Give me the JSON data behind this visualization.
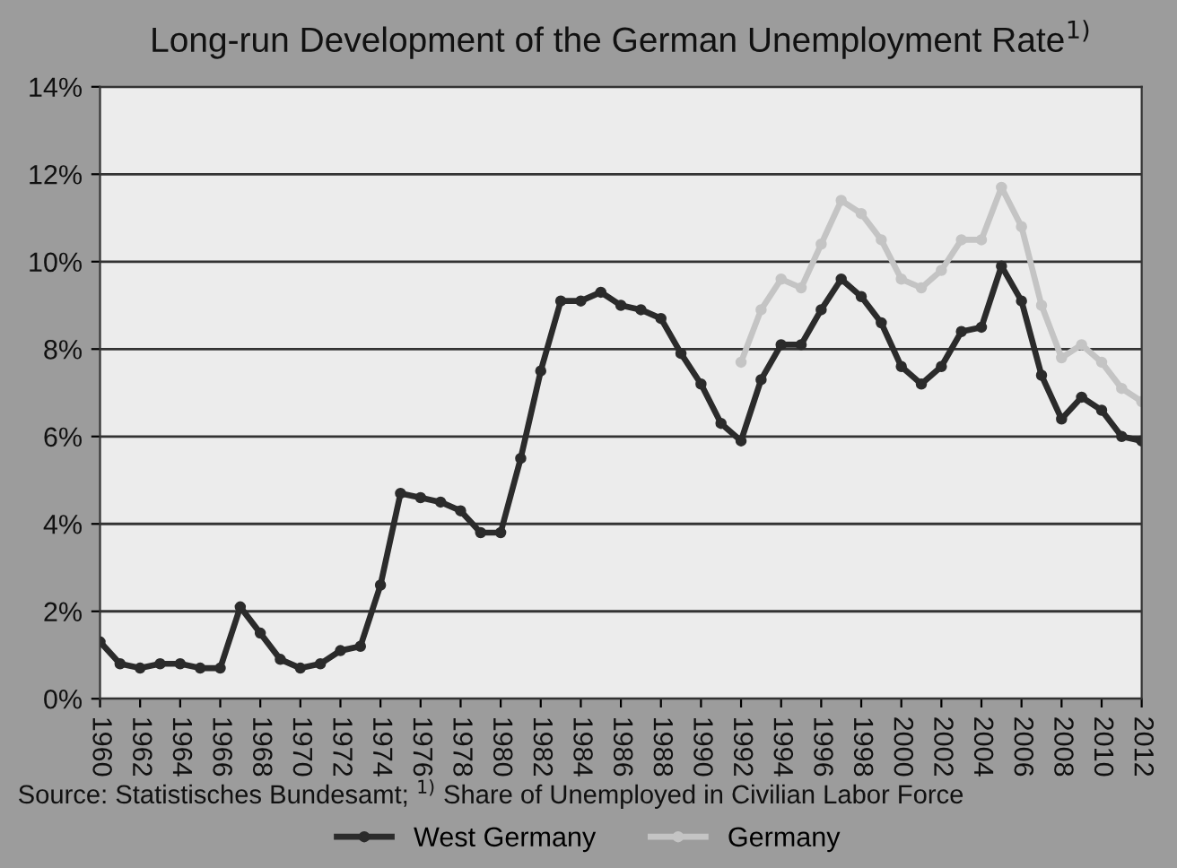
{
  "chart_data": {
    "type": "line",
    "title": "Long-run Development of the German Unemployment Rate$^{1)}$",
    "x": [
      1960,
      1961,
      1962,
      1963,
      1964,
      1965,
      1966,
      1967,
      1968,
      1969,
      1970,
      1971,
      1972,
      1973,
      1974,
      1975,
      1976,
      1977,
      1978,
      1979,
      1980,
      1981,
      1982,
      1983,
      1984,
      1985,
      1986,
      1987,
      1988,
      1989,
      1990,
      1991,
      1992,
      1993,
      1994,
      1995,
      1996,
      1997,
      1998,
      1999,
      2000,
      2001,
      2002,
      2003,
      2004,
      2005,
      2006,
      2007,
      2008,
      2009,
      2010,
      2011,
      2012
    ],
    "series": [
      {
        "name": "West Germany",
        "color": "#2b2b2b",
        "values": [
          1.3,
          0.8,
          0.7,
          0.8,
          0.8,
          0.7,
          0.7,
          2.1,
          1.5,
          0.9,
          0.7,
          0.8,
          1.1,
          1.2,
          2.6,
          4.7,
          4.6,
          4.5,
          4.3,
          3.8,
          3.8,
          5.5,
          7.5,
          9.1,
          9.1,
          9.3,
          9.0,
          8.9,
          8.7,
          7.9,
          7.2,
          6.3,
          5.9,
          7.3,
          8.1,
          8.1,
          8.9,
          9.6,
          9.2,
          8.6,
          7.6,
          7.2,
          7.6,
          8.4,
          8.5,
          9.9,
          9.1,
          7.4,
          6.4,
          6.9,
          6.6,
          6.0,
          5.9
        ]
      },
      {
        "name": "Germany",
        "color": "#c4c4c4",
        "x": [
          1992,
          1993,
          1994,
          1995,
          1996,
          1997,
          1998,
          1999,
          2000,
          2001,
          2002,
          2003,
          2004,
          2005,
          2006,
          2007,
          2008,
          2009,
          2010,
          2011,
          2012
        ],
        "values": [
          7.7,
          8.9,
          9.6,
          9.4,
          10.4,
          11.4,
          11.1,
          10.5,
          9.6,
          9.4,
          9.8,
          10.5,
          10.5,
          11.7,
          10.8,
          9.0,
          7.8,
          8.1,
          7.7,
          7.1,
          6.8
        ]
      }
    ],
    "xlim": [
      1960,
      2012
    ],
    "xticks": [
      1960,
      1962,
      1964,
      1966,
      1968,
      1970,
      1972,
      1974,
      1976,
      1978,
      1980,
      1982,
      1984,
      1986,
      1988,
      1990,
      1992,
      1994,
      1996,
      1998,
      2000,
      2002,
      2004,
      2006,
      2008,
      2010,
      2012
    ],
    "ylim": [
      0,
      14
    ],
    "yticks": [
      {
        "value": 0,
        "label": "0%"
      },
      {
        "value": 2,
        "label": "2%"
      },
      {
        "value": 4,
        "label": "4%"
      },
      {
        "value": 6,
        "label": "6%"
      },
      {
        "value": 8,
        "label": "8%"
      },
      {
        "value": 10,
        "label": "10%"
      },
      {
        "value": 12,
        "label": "12%"
      },
      {
        "value": 14,
        "label": "14%"
      }
    ],
    "grid": "y",
    "legend": "bottom",
    "marker": "circle",
    "line_style": "solid",
    "annotations": [
      "Source: Statistisches Bundesamt; $^{1)}$ Share of Unemployed in Civilian Labor Force"
    ]
  }
}
